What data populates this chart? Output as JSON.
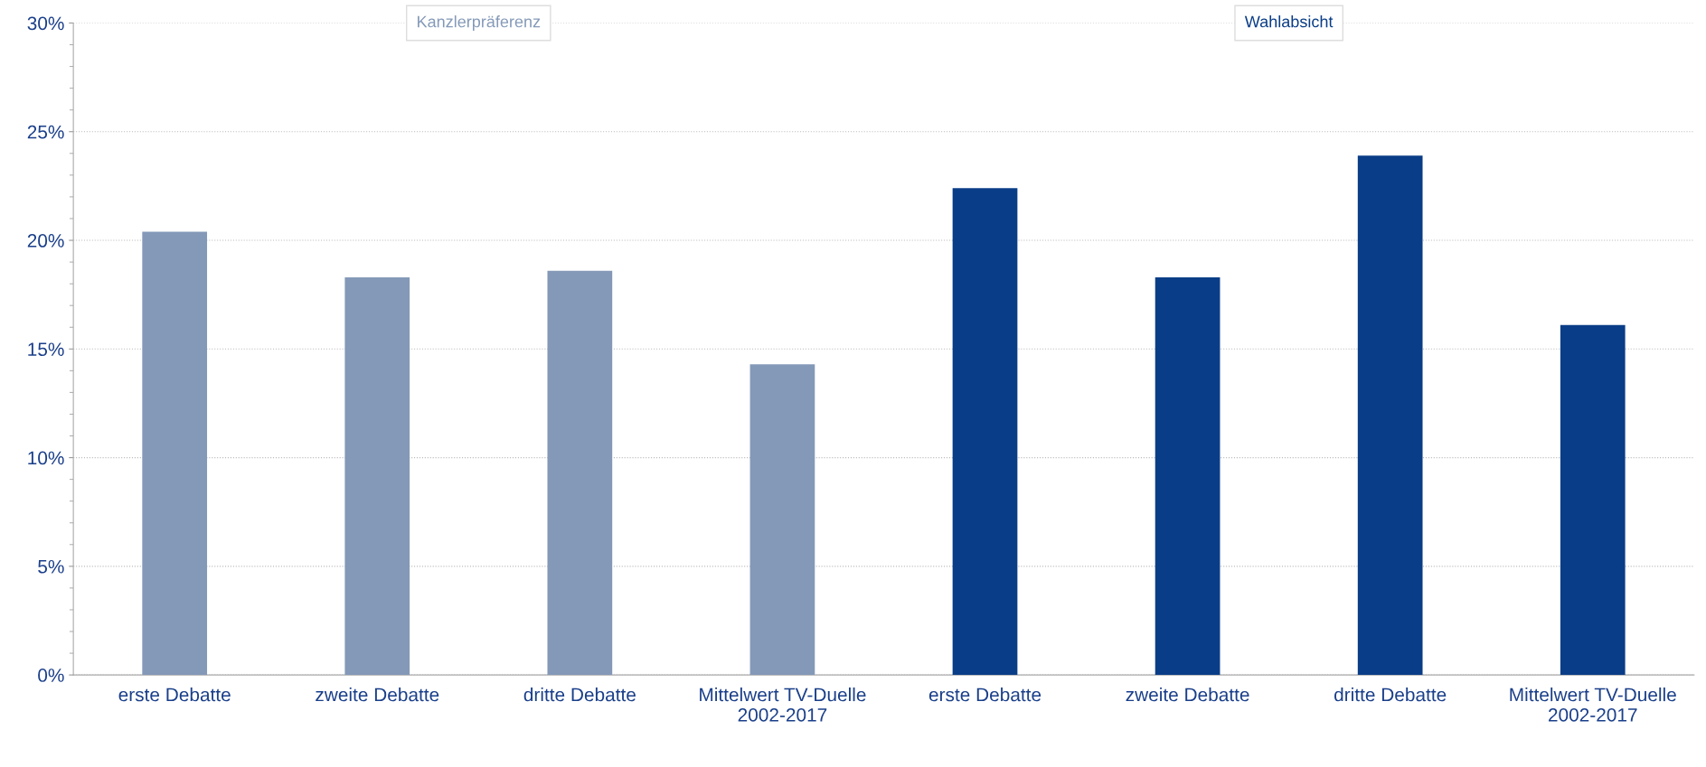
{
  "chart_data": {
    "type": "bar",
    "categories": [
      "erste Debatte",
      "zweite Debatte",
      "dritte Debatte",
      "Mittelwert TV-Duelle\n2002-2017",
      "erste Debatte",
      "zweite Debatte",
      "dritte Debatte",
      "Mittelwert TV-Duelle\n2002-2017"
    ],
    "series": [
      {
        "name": "Kanzlerpräferenz",
        "color": "#8499b8",
        "values": [
          20.4,
          18.3,
          18.6,
          14.3,
          null,
          null,
          null,
          null
        ]
      },
      {
        "name": "Wahlabsicht",
        "color": "#0a3d87",
        "values": [
          null,
          null,
          null,
          null,
          22.4,
          18.3,
          23.9,
          16.1
        ]
      }
    ],
    "ylim": [
      0,
      30
    ],
    "yticks": [
      {
        "value": 0,
        "label": "0%"
      },
      {
        "value": 5,
        "label": "5%"
      },
      {
        "value": 10,
        "label": "10%"
      },
      {
        "value": 15,
        "label": "15%"
      },
      {
        "value": 20,
        "label": "20%"
      },
      {
        "value": 25,
        "label": "25%"
      },
      {
        "value": 30,
        "label": "30%"
      }
    ],
    "grid": "y",
    "legend": false
  }
}
